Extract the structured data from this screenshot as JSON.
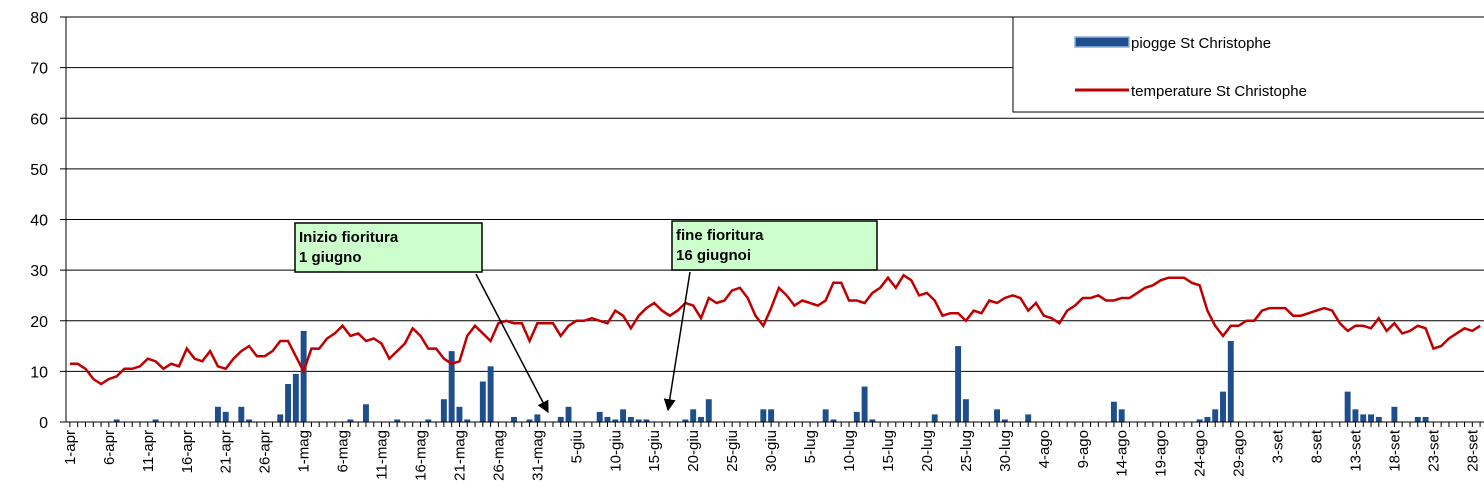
{
  "chart_data": {
    "type": "bar",
    "categories": [
      "1-apr",
      null,
      null,
      null,
      null,
      "6-apr",
      null,
      null,
      null,
      null,
      "11-apr",
      null,
      null,
      null,
      null,
      "16-apr",
      null,
      null,
      null,
      null,
      "21-apr",
      null,
      null,
      null,
      null,
      "26-apr",
      null,
      null,
      null,
      null,
      "1-mag",
      null,
      null,
      null,
      null,
      "6-mag",
      null,
      null,
      null,
      null,
      "11-mag",
      null,
      null,
      null,
      null,
      "16-mag",
      null,
      null,
      null,
      null,
      "21-mag",
      null,
      null,
      null,
      null,
      "26-mag",
      null,
      null,
      null,
      null,
      "31-mag",
      null,
      null,
      null,
      null,
      "5-giu",
      null,
      null,
      null,
      null,
      "10-giu",
      null,
      null,
      null,
      null,
      "15-giu",
      null,
      null,
      null,
      null,
      "20-giu",
      null,
      null,
      null,
      null,
      "25-giu",
      null,
      null,
      null,
      null,
      "30-giu",
      null,
      null,
      null,
      null,
      "5-lug",
      null,
      null,
      null,
      null,
      "10-lug",
      null,
      null,
      null,
      null,
      "15-lug",
      null,
      null,
      null,
      null,
      "20-lug",
      null,
      null,
      null,
      null,
      "25-lug",
      null,
      null,
      null,
      null,
      "30-lug",
      null,
      null,
      null,
      null,
      "4-ago",
      null,
      null,
      null,
      null,
      "9-ago",
      null,
      null,
      null,
      null,
      "14-ago",
      null,
      null,
      null,
      null,
      "19-ago",
      null,
      null,
      null,
      null,
      "24-ago",
      null,
      null,
      null,
      null,
      "29-ago",
      null,
      null,
      null,
      null,
      "3-set",
      null,
      null,
      null,
      null,
      "8-set",
      null,
      null,
      null,
      null,
      "13-set",
      null,
      null,
      null,
      null,
      "18-set",
      null,
      null,
      null,
      null,
      "23-set",
      null,
      null,
      null,
      null,
      "28-set",
      null
    ],
    "series": [
      {
        "name": "piogge St Christophe",
        "type": "bar",
        "color": "#1f4e8c",
        "values": [
          0,
          0,
          0,
          0,
          0,
          0,
          0.5,
          0,
          0,
          0,
          0,
          0.5,
          0,
          0,
          0,
          0,
          0,
          0,
          0,
          3,
          2,
          0,
          3,
          0.5,
          0,
          0,
          0,
          1.5,
          7.5,
          9.5,
          18,
          0,
          0,
          0,
          0,
          0,
          0.5,
          0,
          3.5,
          0,
          0,
          0,
          0.5,
          0,
          0,
          0,
          0.5,
          0,
          4.5,
          14,
          3,
          0.5,
          0,
          8,
          11,
          0,
          0,
          1,
          0,
          0.5,
          1.5,
          0,
          0,
          1,
          3,
          0,
          0,
          0,
          2,
          1,
          0.5,
          2.5,
          1,
          0.5,
          0.5,
          0,
          0,
          0,
          0,
          0.5,
          2.5,
          1,
          4.5,
          0,
          0,
          0,
          0,
          0,
          0,
          2.5,
          2.5,
          0,
          0,
          0,
          0,
          0,
          0,
          2.5,
          0.5,
          0,
          0,
          2,
          7,
          0.5,
          0,
          0,
          0,
          0,
          0,
          0,
          0,
          1.5,
          0,
          0,
          15,
          4.5,
          0,
          0,
          0,
          2.5,
          0.5,
          0,
          0,
          1.5,
          0,
          0,
          0,
          0,
          0,
          0,
          0,
          0,
          0,
          0,
          4,
          2.5,
          0,
          0,
          0,
          0,
          0,
          0,
          0,
          0,
          0,
          0.5,
          1,
          2.5,
          6,
          16,
          0,
          0,
          0,
          0,
          0,
          0,
          0,
          0,
          0,
          0,
          0,
          0,
          0,
          0,
          6,
          2.5,
          1.5,
          1.5,
          1,
          0,
          3,
          0,
          0,
          1,
          1,
          0,
          0,
          0,
          0,
          0,
          0,
          0
        ]
      },
      {
        "name": "temperature St Christophe",
        "type": "line",
        "color": "#c00000",
        "values": [
          11.5,
          11.5,
          10.5,
          8.5,
          7.5,
          8.5,
          9,
          10.5,
          10.5,
          11,
          12.5,
          12,
          10.5,
          11.5,
          11,
          14.5,
          12.5,
          12,
          14,
          11,
          10.5,
          12.5,
          14,
          15,
          13,
          13,
          14,
          16,
          16,
          13,
          10,
          14.5,
          14.5,
          16.5,
          17.5,
          19,
          17,
          17.5,
          16,
          16.5,
          15.5,
          12.5,
          14,
          15.5,
          18.5,
          17,
          14.5,
          14.5,
          12.5,
          11.5,
          12,
          17,
          19,
          17.5,
          16,
          19.5,
          20,
          19.5,
          19.5,
          16,
          19.5,
          19.5,
          19.5,
          17,
          19,
          20,
          20,
          20.5,
          20,
          19.5,
          22,
          21,
          18.5,
          21,
          22.5,
          23.5,
          22,
          21,
          22,
          23.5,
          23,
          20.5,
          24.5,
          23.5,
          24,
          26,
          26.5,
          24.5,
          21,
          19,
          22.5,
          26.5,
          25,
          23,
          24,
          23.5,
          23,
          24,
          27.5,
          27.5,
          24,
          24,
          23.5,
          25.5,
          26.5,
          28.5,
          26.5,
          29,
          28,
          25,
          25.5,
          24,
          21,
          21.5,
          21.5,
          20,
          22,
          21.5,
          24,
          23.5,
          24.5,
          25,
          24.5,
          22,
          23.5,
          21,
          20.5,
          19.5,
          22,
          23,
          24.5,
          24.5,
          25,
          24,
          24,
          24.5,
          24.5,
          25.5,
          26.5,
          27,
          28,
          28.5,
          28.5,
          28.5,
          27.5,
          27,
          22,
          19,
          17,
          19,
          19,
          20,
          20,
          22,
          22.5,
          22.5,
          22.5,
          21,
          21,
          21.5,
          22,
          22.5,
          22,
          19.5,
          18,
          19,
          19,
          18.5,
          20.5,
          18,
          19.5,
          17.5,
          18,
          19,
          18.5,
          14.5,
          15,
          16.5,
          17.5,
          18.5,
          18,
          19
        ]
      }
    ],
    "ylim": [
      0,
      80
    ],
    "yticks": [
      0,
      10,
      20,
      30,
      40,
      50,
      60,
      70,
      80
    ],
    "grid": true,
    "legend": "top-right",
    "annotations": [
      {
        "text": [
          "Inizio fioritura",
          "1 giugno"
        ]
      },
      {
        "text": [
          "fine fioritura",
          "16 giugnoi"
        ]
      }
    ]
  }
}
